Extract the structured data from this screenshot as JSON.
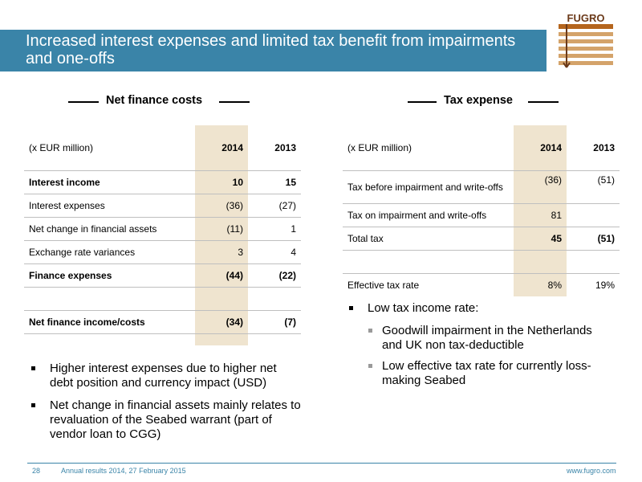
{
  "title": "Increased interest expenses and limited tax benefit from impairments and one-offs",
  "logo_text": "FUGRO",
  "colors": {
    "band": "#3a84a8",
    "highlight": "#efe4cf"
  },
  "left": {
    "heading": "Net finance costs",
    "header": [
      "(x EUR million)",
      "2014",
      "2013"
    ],
    "rows": [
      [
        "Interest income",
        "10",
        "15"
      ],
      [
        "Interest expenses",
        "(36)",
        "(27)"
      ],
      [
        "Net change in financial assets",
        "(11)",
        "1"
      ],
      [
        "Exchange rate variances",
        "3",
        "4"
      ],
      [
        "Finance expenses",
        "(44)",
        "(22)"
      ],
      [
        "",
        "",
        ""
      ],
      [
        "Net finance income/costs",
        "(34)",
        "(7)"
      ]
    ],
    "bullets": [
      "Higher interest expenses due to higher net debt position and currency impact (USD)",
      "Net change in financial assets mainly relates to revaluation of the Seabed warrant (part of vendor loan to CGG)"
    ]
  },
  "right": {
    "heading": "Tax expense",
    "header": [
      "(x EUR million)",
      "2014",
      "2013"
    ],
    "rows": [
      [
        "Tax before impairment and write-offs",
        "(36)",
        "(51)"
      ],
      [
        "Tax on impairment and write-offs",
        "81",
        ""
      ],
      [
        "Total tax",
        "45",
        "(51)"
      ],
      [
        "",
        "",
        ""
      ],
      [
        "Effective tax rate",
        "8%",
        "19%"
      ]
    ],
    "bullet": "Low tax income rate:",
    "sub_bullets": [
      "Goodwill impairment in the Netherlands and UK non tax-deductible",
      "Low effective tax rate for currently loss-making Seabed"
    ]
  },
  "footer": {
    "page": "28",
    "event": "Annual results 2014, 27 February 2015",
    "url": "www.fugro.com"
  }
}
